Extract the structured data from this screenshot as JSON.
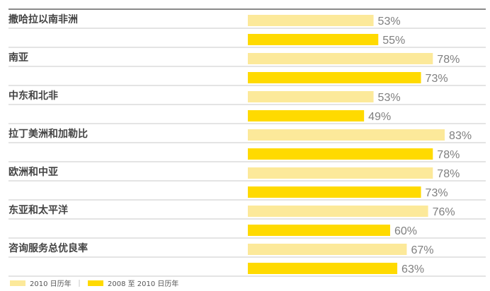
{
  "chart_data": {
    "type": "bar",
    "orientation": "horizontal",
    "categories": [
      "撒哈拉以南非洲",
      "南亚",
      "中东和北非",
      "拉丁美洲和加勒比",
      "欧洲和中亚",
      "东亚和太平洋",
      "咨询服务总优良率"
    ],
    "series": [
      {
        "name": "2010 日历年",
        "values": [
          53,
          78,
          53,
          83,
          78,
          76,
          67
        ],
        "color": "#FCE99A"
      },
      {
        "name": "2008 至 2010 日历年",
        "values": [
          55,
          73,
          49,
          78,
          73,
          60,
          63
        ],
        "color": "#FFDA00"
      }
    ],
    "value_labels": [
      [
        "53%",
        "78%",
        "53%",
        "83%",
        "78%",
        "76%",
        "67%"
      ],
      [
        "55%",
        "73%",
        "49%",
        "78%",
        "73%",
        "60%",
        "63%"
      ]
    ],
    "value_suffix": "%",
    "xlim": [
      0,
      100
    ],
    "grid": false,
    "legend": "bottom-left",
    "title": "",
    "xlabel": "",
    "ylabel": ""
  }
}
